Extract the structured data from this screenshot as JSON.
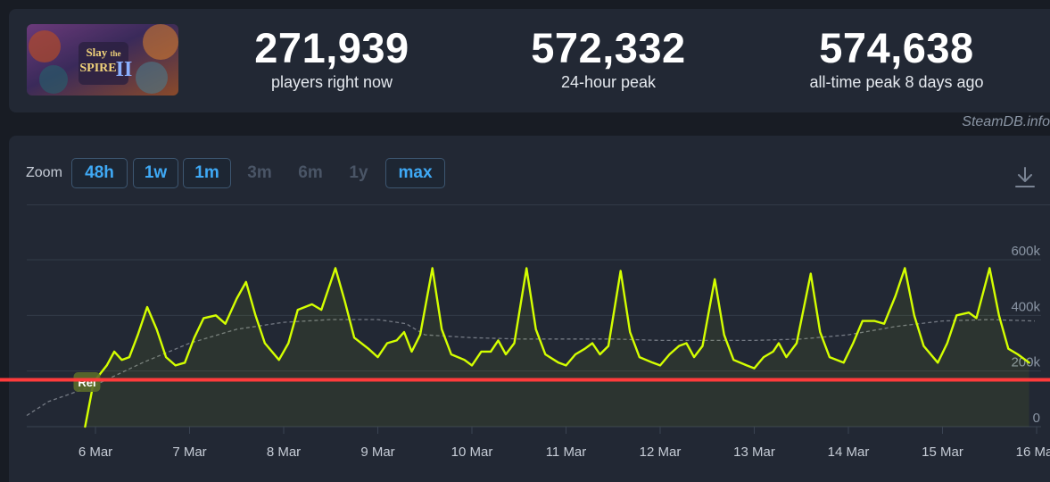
{
  "stats": [
    {
      "value": "271,939",
      "label": "players right now"
    },
    {
      "value": "572,332",
      "label": "24-hour peak"
    },
    {
      "value": "574,638",
      "label": "all-time peak 8 days ago"
    }
  ],
  "banner": {
    "line1": "Slay",
    "line2": "the",
    "line3": "SPIRE",
    "numeral": "II"
  },
  "credit": "SteamDB.info",
  "zoom": {
    "label": "Zoom",
    "buttons": [
      {
        "label": "48h",
        "enabled": true
      },
      {
        "label": "1w",
        "enabled": true
      },
      {
        "label": "1m",
        "enabled": true
      },
      {
        "label": "3m",
        "enabled": false
      },
      {
        "label": "6m",
        "enabled": false
      },
      {
        "label": "1y",
        "enabled": false
      },
      {
        "label": "max",
        "enabled": true
      }
    ]
  },
  "colors": {
    "players": "#d4ff00",
    "average": "#8a8f98",
    "release_line": "#ff3b3b",
    "background": "#222834"
  },
  "chart_data": {
    "type": "line",
    "title": "",
    "xlabel": "",
    "ylabel": "",
    "x_ticks": [
      "6 Mar",
      "7 Mar",
      "8 Mar",
      "9 Mar",
      "10 Mar",
      "11 Mar",
      "12 Mar",
      "13 Mar",
      "14 Mar",
      "15 Mar",
      "16 Mar"
    ],
    "y_ticks": [
      "0",
      "200k",
      "400k",
      "600k"
    ],
    "ylim": [
      0,
      600000
    ],
    "annotation": {
      "label": "Rel",
      "day": 5.9
    },
    "horizontal_line": {
      "y": 175000
    },
    "series": [
      {
        "role": "players",
        "points": [
          [
            5.89,
            0
          ],
          [
            5.98,
            160000
          ],
          [
            6.05,
            190000
          ],
          [
            6.12,
            220000
          ],
          [
            6.2,
            270000
          ],
          [
            6.28,
            240000
          ],
          [
            6.36,
            250000
          ],
          [
            6.45,
            330000
          ],
          [
            6.55,
            430000
          ],
          [
            6.65,
            350000
          ],
          [
            6.75,
            250000
          ],
          [
            6.85,
            220000
          ],
          [
            6.95,
            230000
          ],
          [
            7.05,
            320000
          ],
          [
            7.15,
            390000
          ],
          [
            7.28,
            400000
          ],
          [
            7.38,
            370000
          ],
          [
            7.5,
            460000
          ],
          [
            7.6,
            520000
          ],
          [
            7.7,
            400000
          ],
          [
            7.8,
            300000
          ],
          [
            7.95,
            240000
          ],
          [
            8.05,
            300000
          ],
          [
            8.15,
            420000
          ],
          [
            8.3,
            440000
          ],
          [
            8.4,
            420000
          ],
          [
            8.55,
            570000
          ],
          [
            8.65,
            450000
          ],
          [
            8.75,
            320000
          ],
          [
            8.9,
            280000
          ],
          [
            9.0,
            250000
          ],
          [
            9.1,
            300000
          ],
          [
            9.2,
            310000
          ],
          [
            9.28,
            340000
          ],
          [
            9.36,
            270000
          ],
          [
            9.45,
            330000
          ],
          [
            9.58,
            570000
          ],
          [
            9.68,
            350000
          ],
          [
            9.78,
            260000
          ],
          [
            9.92,
            240000
          ],
          [
            10.0,
            220000
          ],
          [
            10.1,
            270000
          ],
          [
            10.2,
            270000
          ],
          [
            10.28,
            310000
          ],
          [
            10.36,
            260000
          ],
          [
            10.45,
            300000
          ],
          [
            10.58,
            570000
          ],
          [
            10.68,
            350000
          ],
          [
            10.78,
            260000
          ],
          [
            10.92,
            230000
          ],
          [
            11.0,
            220000
          ],
          [
            11.1,
            260000
          ],
          [
            11.2,
            280000
          ],
          [
            11.28,
            300000
          ],
          [
            11.36,
            260000
          ],
          [
            11.45,
            290000
          ],
          [
            11.58,
            560000
          ],
          [
            11.68,
            340000
          ],
          [
            11.78,
            250000
          ],
          [
            11.92,
            230000
          ],
          [
            12.0,
            220000
          ],
          [
            12.1,
            260000
          ],
          [
            12.2,
            290000
          ],
          [
            12.28,
            300000
          ],
          [
            12.36,
            250000
          ],
          [
            12.45,
            290000
          ],
          [
            12.58,
            530000
          ],
          [
            12.68,
            330000
          ],
          [
            12.78,
            240000
          ],
          [
            12.92,
            220000
          ],
          [
            13.0,
            210000
          ],
          [
            13.1,
            250000
          ],
          [
            13.2,
            270000
          ],
          [
            13.26,
            300000
          ],
          [
            13.34,
            250000
          ],
          [
            13.45,
            300000
          ],
          [
            13.6,
            550000
          ],
          [
            13.7,
            340000
          ],
          [
            13.8,
            250000
          ],
          [
            13.95,
            230000
          ],
          [
            14.05,
            300000
          ],
          [
            14.15,
            380000
          ],
          [
            14.28,
            380000
          ],
          [
            14.38,
            370000
          ],
          [
            14.5,
            470000
          ],
          [
            14.6,
            570000
          ],
          [
            14.7,
            400000
          ],
          [
            14.8,
            290000
          ],
          [
            14.95,
            230000
          ],
          [
            15.05,
            300000
          ],
          [
            15.15,
            400000
          ],
          [
            15.28,
            410000
          ],
          [
            15.36,
            390000
          ],
          [
            15.5,
            570000
          ],
          [
            15.6,
            400000
          ],
          [
            15.7,
            280000
          ],
          [
            15.8,
            260000
          ],
          [
            15.92,
            230000
          ]
        ]
      },
      {
        "role": "average",
        "points": [
          [
            5.0,
            40000
          ],
          [
            5.5,
            90000
          ],
          [
            6.0,
            150000
          ],
          [
            6.5,
            230000
          ],
          [
            7.0,
            300000
          ],
          [
            7.5,
            350000
          ],
          [
            8.0,
            375000
          ],
          [
            8.5,
            385000
          ],
          [
            9.0,
            385000
          ],
          [
            9.3,
            370000
          ],
          [
            9.5,
            330000
          ],
          [
            10.0,
            320000
          ],
          [
            10.5,
            315000
          ],
          [
            11.0,
            315000
          ],
          [
            11.5,
            315000
          ],
          [
            12.0,
            310000
          ],
          [
            12.5,
            310000
          ],
          [
            13.0,
            310000
          ],
          [
            13.5,
            315000
          ],
          [
            14.0,
            330000
          ],
          [
            14.5,
            360000
          ],
          [
            15.0,
            380000
          ],
          [
            15.5,
            385000
          ],
          [
            15.98,
            380000
          ]
        ]
      }
    ]
  }
}
